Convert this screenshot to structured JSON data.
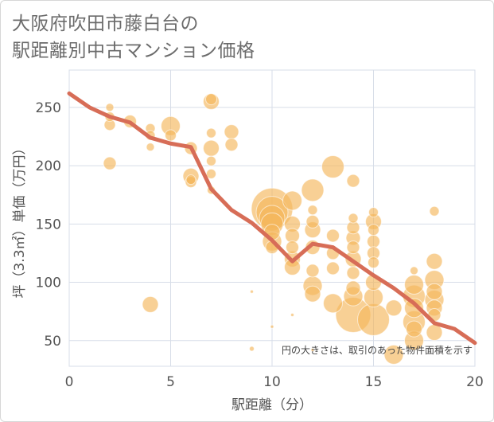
{
  "title_line1": "大阪府吹田市藤白台の",
  "title_line2": "駅距離別中古マンション価格",
  "colors": {
    "bubble": "#f5b75c",
    "line": "#d76d57",
    "grid": "#d7dde8"
  },
  "chart_data": {
    "type": "scatter",
    "xlabel": "駅距離（分）",
    "ylabel": "坪（3.3㎡）単価（万円）",
    "xlim": [
      0,
      20
    ],
    "ylim": [
      28,
      282
    ],
    "xticks": [
      "0",
      "5",
      "10",
      "15",
      "20"
    ],
    "yticks": [
      "50",
      "100",
      "150",
      "200",
      "250"
    ],
    "annotation": "円の大きさは、取引のあった物件面積を示す",
    "grid": true,
    "bubbles": [
      {
        "x": 2,
        "y": 250,
        "r": 5
      },
      {
        "x": 2,
        "y": 242,
        "r": 6
      },
      {
        "x": 2,
        "y": 235,
        "r": 7
      },
      {
        "x": 2,
        "y": 202,
        "r": 8
      },
      {
        "x": 3,
        "y": 238,
        "r": 8
      },
      {
        "x": 4,
        "y": 232,
        "r": 6
      },
      {
        "x": 4,
        "y": 226,
        "r": 6
      },
      {
        "x": 4,
        "y": 216,
        "r": 5
      },
      {
        "x": 4,
        "y": 81,
        "r": 10
      },
      {
        "x": 5,
        "y": 234,
        "r": 12
      },
      {
        "x": 5,
        "y": 226,
        "r": 7
      },
      {
        "x": 6,
        "y": 215,
        "r": 8
      },
      {
        "x": 6,
        "y": 191,
        "r": 10
      },
      {
        "x": 6,
        "y": 186,
        "r": 7
      },
      {
        "x": 6,
        "y": 188,
        "r": 6
      },
      {
        "x": 7,
        "y": 257,
        "r": 7
      },
      {
        "x": 7,
        "y": 255,
        "r": 10
      },
      {
        "x": 7,
        "y": 228,
        "r": 6
      },
      {
        "x": 7,
        "y": 215,
        "r": 10
      },
      {
        "x": 7,
        "y": 204,
        "r": 6
      },
      {
        "x": 7,
        "y": 193,
        "r": 6
      },
      {
        "x": 7,
        "y": 179,
        "r": 5
      },
      {
        "x": 8,
        "y": 229,
        "r": 9
      },
      {
        "x": 8,
        "y": 218,
        "r": 8
      },
      {
        "x": 9,
        "y": 92,
        "r": 2
      },
      {
        "x": 9,
        "y": 43,
        "r": 3
      },
      {
        "x": 10,
        "y": 163,
        "r": 26
      },
      {
        "x": 10,
        "y": 160,
        "r": 20
      },
      {
        "x": 10,
        "y": 155,
        "r": 16
      },
      {
        "x": 10,
        "y": 150,
        "r": 14
      },
      {
        "x": 10,
        "y": 135,
        "r": 12
      },
      {
        "x": 10,
        "y": 130,
        "r": 8
      },
      {
        "x": 10,
        "y": 143,
        "r": 10
      },
      {
        "x": 10,
        "y": 62,
        "r": 2
      },
      {
        "x": 11,
        "y": 170,
        "r": 12
      },
      {
        "x": 11,
        "y": 150,
        "r": 10
      },
      {
        "x": 11,
        "y": 140,
        "r": 9
      },
      {
        "x": 11,
        "y": 130,
        "r": 8
      },
      {
        "x": 11,
        "y": 120,
        "r": 10
      },
      {
        "x": 11,
        "y": 113,
        "r": 10
      },
      {
        "x": 11,
        "y": 72,
        "r": 2
      },
      {
        "x": 12,
        "y": 179,
        "r": 14
      },
      {
        "x": 12,
        "y": 162,
        "r": 6
      },
      {
        "x": 12,
        "y": 152,
        "r": 8
      },
      {
        "x": 12,
        "y": 145,
        "r": 10
      },
      {
        "x": 12,
        "y": 130,
        "r": 9
      },
      {
        "x": 12,
        "y": 110,
        "r": 8
      },
      {
        "x": 12,
        "y": 97,
        "r": 12
      },
      {
        "x": 12,
        "y": 90,
        "r": 10
      },
      {
        "x": 12,
        "y": 42,
        "r": 2
      },
      {
        "x": 13,
        "y": 199,
        "r": 14
      },
      {
        "x": 13,
        "y": 140,
        "r": 8
      },
      {
        "x": 13,
        "y": 125,
        "r": 8
      },
      {
        "x": 13,
        "y": 112,
        "r": 8
      },
      {
        "x": 13,
        "y": 82,
        "r": 12
      },
      {
        "x": 14,
        "y": 187,
        "r": 8
      },
      {
        "x": 14,
        "y": 155,
        "r": 6
      },
      {
        "x": 14,
        "y": 147,
        "r": 8
      },
      {
        "x": 14,
        "y": 138,
        "r": 9
      },
      {
        "x": 14,
        "y": 130,
        "r": 8
      },
      {
        "x": 14,
        "y": 120,
        "r": 10
      },
      {
        "x": 14,
        "y": 108,
        "r": 8
      },
      {
        "x": 14,
        "y": 95,
        "r": 9
      },
      {
        "x": 14,
        "y": 88,
        "r": 12
      },
      {
        "x": 14,
        "y": 72,
        "r": 22
      },
      {
        "x": 15,
        "y": 160,
        "r": 6
      },
      {
        "x": 15,
        "y": 152,
        "r": 10
      },
      {
        "x": 15,
        "y": 145,
        "r": 7
      },
      {
        "x": 15,
        "y": 135,
        "r": 8
      },
      {
        "x": 15,
        "y": 125,
        "r": 8
      },
      {
        "x": 15,
        "y": 117,
        "r": 7
      },
      {
        "x": 15,
        "y": 100,
        "r": 10
      },
      {
        "x": 15,
        "y": 87,
        "r": 12
      },
      {
        "x": 15,
        "y": 68,
        "r": 20
      },
      {
        "x": 16,
        "y": 78,
        "r": 10
      },
      {
        "x": 16,
        "y": 38,
        "r": 12
      },
      {
        "x": 17,
        "y": 110,
        "r": 5
      },
      {
        "x": 17,
        "y": 98,
        "r": 12
      },
      {
        "x": 17,
        "y": 88,
        "r": 14
      },
      {
        "x": 17,
        "y": 78,
        "r": 12
      },
      {
        "x": 17,
        "y": 66,
        "r": 14
      },
      {
        "x": 17,
        "y": 60,
        "r": 10
      },
      {
        "x": 17,
        "y": 50,
        "r": 12
      },
      {
        "x": 18,
        "y": 161,
        "r": 6
      },
      {
        "x": 18,
        "y": 118,
        "r": 10
      },
      {
        "x": 18,
        "y": 102,
        "r": 12
      },
      {
        "x": 18,
        "y": 92,
        "r": 10
      },
      {
        "x": 18,
        "y": 85,
        "r": 12
      },
      {
        "x": 18,
        "y": 78,
        "r": 10
      },
      {
        "x": 18,
        "y": 72,
        "r": 8
      },
      {
        "x": 18,
        "y": 57,
        "r": 10
      }
    ],
    "series": [
      {
        "x": [
          0,
          1,
          2,
          3,
          4,
          5,
          6,
          7,
          8,
          9,
          10,
          11,
          12,
          13,
          14,
          15,
          16,
          17,
          18,
          19,
          20
        ],
        "values": [
          262,
          250,
          242,
          237,
          224,
          219,
          216,
          180,
          162,
          151,
          136,
          118,
          133,
          130,
          118,
          106,
          95,
          82,
          65,
          60,
          48
        ]
      }
    ]
  }
}
